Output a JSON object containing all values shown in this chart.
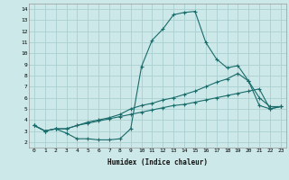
{
  "xlabel": "Humidex (Indice chaleur)",
  "xlim": [
    -0.5,
    23.5
  ],
  "ylim": [
    1.5,
    14.5
  ],
  "xticks": [
    0,
    1,
    2,
    3,
    4,
    5,
    6,
    7,
    8,
    9,
    10,
    11,
    12,
    13,
    14,
    15,
    16,
    17,
    18,
    19,
    20,
    21,
    22,
    23
  ],
  "yticks": [
    2,
    3,
    4,
    5,
    6,
    7,
    8,
    9,
    10,
    11,
    12,
    13,
    14
  ],
  "bg_color": "#cce8e8",
  "line_color": "#1a6b6b",
  "grid_color": "#aad0d0",
  "line1_x": [
    0,
    1,
    2,
    3,
    4,
    5,
    6,
    7,
    8,
    9,
    10,
    11,
    12,
    13,
    14,
    15,
    16,
    17,
    18,
    19,
    20,
    21,
    22,
    23
  ],
  "line1_y": [
    3.5,
    3.0,
    3.2,
    2.8,
    2.3,
    2.3,
    2.2,
    2.2,
    2.3,
    3.2,
    8.8,
    11.2,
    12.2,
    13.5,
    13.7,
    13.8,
    11.0,
    9.5,
    8.7,
    8.9,
    7.5,
    6.0,
    5.2,
    5.2
  ],
  "line2_x": [
    0,
    1,
    2,
    3,
    4,
    5,
    6,
    7,
    8,
    9,
    10,
    11,
    12,
    13,
    14,
    15,
    16,
    17,
    18,
    19,
    20,
    21,
    22,
    23
  ],
  "line2_y": [
    3.5,
    3.0,
    3.2,
    3.2,
    3.5,
    3.8,
    4.0,
    4.2,
    4.5,
    5.0,
    5.3,
    5.5,
    5.8,
    6.0,
    6.3,
    6.6,
    7.0,
    7.4,
    7.7,
    8.2,
    7.5,
    5.3,
    5.0,
    5.2
  ],
  "line3_x": [
    0,
    1,
    2,
    3,
    4,
    5,
    6,
    7,
    8,
    9,
    10,
    11,
    12,
    13,
    14,
    15,
    16,
    17,
    18,
    19,
    20,
    21,
    22,
    23
  ],
  "line3_y": [
    3.5,
    3.0,
    3.2,
    3.2,
    3.5,
    3.7,
    3.9,
    4.1,
    4.3,
    4.5,
    4.7,
    4.9,
    5.1,
    5.3,
    5.4,
    5.6,
    5.8,
    6.0,
    6.2,
    6.4,
    6.6,
    6.8,
    5.0,
    5.2
  ]
}
